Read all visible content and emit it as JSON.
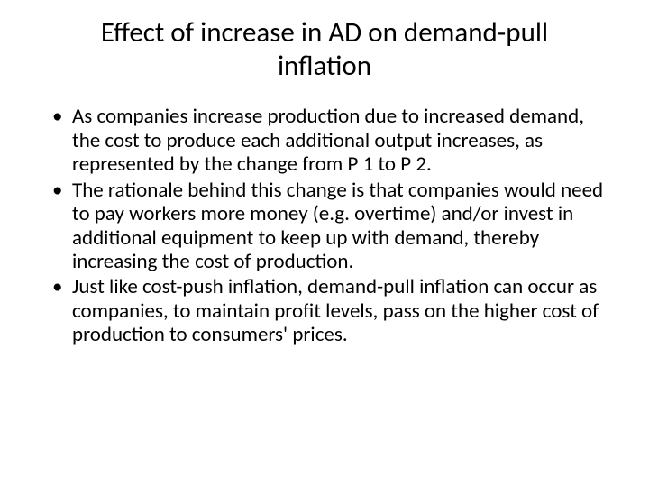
{
  "slide": {
    "title": "Effect of increase in AD on demand-pull inflation",
    "title_fontsize": 31,
    "title_color": "#000000",
    "body_fontsize": 23,
    "body_color": "#000000",
    "background_color": "#ffffff",
    "bullets": [
      "As companies increase production due to increased demand, the cost to produce each additional output increases, as represented by the change from P 1 to P 2.",
      "The rationale behind this change is that companies would need to pay workers more money (e.g. overtime) and/or invest in additional equipment to keep up with demand, thereby increasing the cost of production.",
      "Just like cost-push inflation, demand-pull inflation can occur as companies, to maintain profit levels, pass on the higher cost of production to consumers' prices."
    ]
  }
}
